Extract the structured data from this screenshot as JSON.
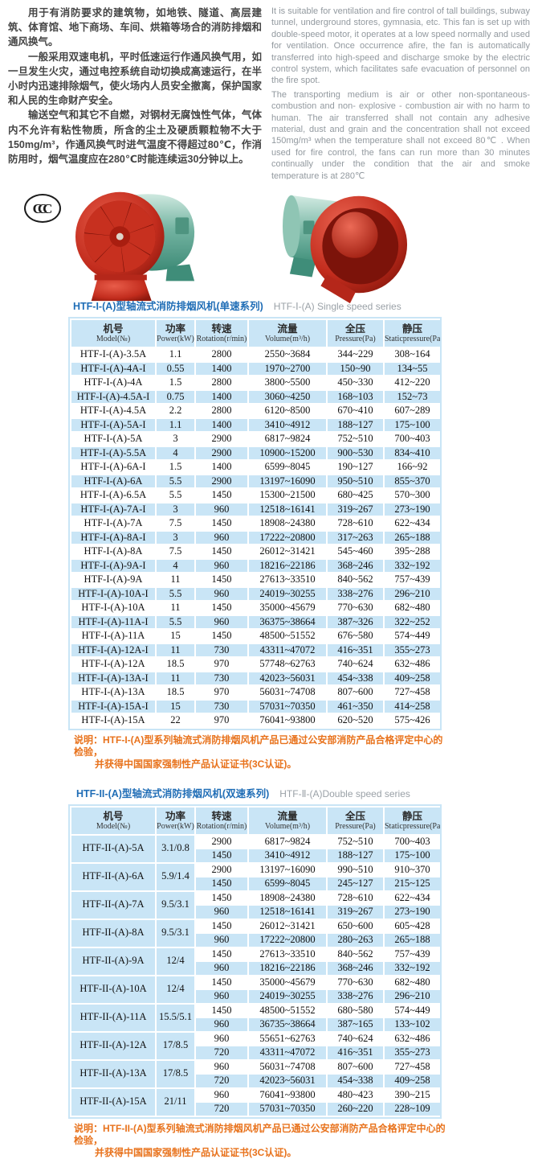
{
  "colors": {
    "accent_blue": "#1f6db6",
    "row_blue": "#c9e5f6",
    "note_orange": "#e8721c",
    "en_text_gray": "#92999f",
    "fan_red": "#c22c1d",
    "fan_green": "#57a28c"
  },
  "intro": {
    "cn_paragraphs": [
      "用于有消防要求的建筑物，如地铁、隧道、高层建筑、体育馆、地下商场、车间、烘箱等场合的消防排烟和通风换气。",
      "一般采用双速电机，平时低速运行作通风换气用，如一旦发生火灾，通过电控系统自动切换成高速运行，在半小时内迅速排除烟气，使火场内人员安全撤离，保护国家和人民的生命财产安全。",
      "输送空气和其它不自燃，对钢材无腐蚀性气体，气体内不允许有粘性物质，所含的尘土及硬质颗粒物不大于150mg/m³，作通风换气时进气温度不得超过80℃，作消防用时，烟气温度应在280℃时能连续运30分钟以上。"
    ],
    "en_paragraphs": [
      "It is suitable for ventilation and fire control of tall buildings, subway tunnel, underground stores, gymnasia, etc. This fan is set up with double-speed motor, it operates at a low speed normally and used for ventilation. Once occurrence afire, the fan is automatically transferred into high-speed and discharge smoke by the electric control system, which facilitates safe evacuation of personnel on the fire spot.",
      "The transporting medium is air or other non-spontaneous-combustion and non- explosive - combustion air with no harm to human. The air transferred shall not contain any adhesive material, dust and grain and the concentration shall not exceed 150mg/m³ when the temperature shall not exceed 80℃ . When used for fire control, the fans can run more than 30 minutes continually under the condition that the air and smoke temperature is at 280℃"
    ]
  },
  "ccc_mark_label": "CCC",
  "columns": [
    {
      "cn": "机号",
      "en": "Model(№)"
    },
    {
      "cn": "功率",
      "en": "Power(kW)"
    },
    {
      "cn": "转速",
      "en": "Rotation(r/min)"
    },
    {
      "cn": "流量",
      "en": "Volume(m³/h)"
    },
    {
      "cn": "全压",
      "en": "Pressure(Pa)"
    },
    {
      "cn": "静压",
      "en": "Staticpressure(Pa)"
    }
  ],
  "table1": {
    "title_cn": "HTF-I-(A)型轴流式消防排烟风机(单速系列)",
    "title_en": "HTF-Ⅰ-(A) Single speed series",
    "rows": [
      [
        "HTF-I-(A)-3.5A",
        "1.1",
        "2800",
        "2550~3684",
        "344~229",
        "308~164"
      ],
      [
        "HTF-I-(A)-4A-I",
        "0.55",
        "1400",
        "1970~2700",
        "150~90",
        "134~55"
      ],
      [
        "HTF-I-(A)-4A",
        "1.5",
        "2800",
        "3800~5500",
        "450~330",
        "412~220"
      ],
      [
        "HTF-I-(A)-4.5A-I",
        "0.75",
        "1400",
        "3060~4250",
        "168~103",
        "152~73"
      ],
      [
        "HTF-I-(A)-4.5A",
        "2.2",
        "2800",
        "6120~8500",
        "670~410",
        "607~289"
      ],
      [
        "HTF-I-(A)-5A-I",
        "1.1",
        "1400",
        "3410~4912",
        "188~127",
        "175~100"
      ],
      [
        "HTF-I-(A)-5A",
        "3",
        "2900",
        "6817~9824",
        "752~510",
        "700~403"
      ],
      [
        "HTF-I-(A)-5.5A",
        "4",
        "2900",
        "10900~15200",
        "900~530",
        "834~410"
      ],
      [
        "HTF-I-(A)-6A-I",
        "1.5",
        "1400",
        "6599~8045",
        "190~127",
        "166~92"
      ],
      [
        "HTF-I-(A)-6A",
        "5.5",
        "2900",
        "13197~16090",
        "950~510",
        "855~370"
      ],
      [
        "HTF-I-(A)-6.5A",
        "5.5",
        "1450",
        "15300~21500",
        "680~425",
        "570~300"
      ],
      [
        "HTF-I-(A)-7A-I",
        "3",
        "960",
        "12518~16141",
        "319~267",
        "273~190"
      ],
      [
        "HTF-I-(A)-7A",
        "7.5",
        "1450",
        "18908~24380",
        "728~610",
        "622~434"
      ],
      [
        "HTF-I-(A)-8A-I",
        "3",
        "960",
        "17222~20800",
        "317~263",
        "265~188"
      ],
      [
        "HTF-I-(A)-8A",
        "7.5",
        "1450",
        "26012~31421",
        "545~460",
        "395~288"
      ],
      [
        "HTF-I-(A)-9A-I",
        "4",
        "960",
        "18216~22186",
        "368~246",
        "332~192"
      ],
      [
        "HTF-I-(A)-9A",
        "11",
        "1450",
        "27613~33510",
        "840~562",
        "757~439"
      ],
      [
        "HTF-I-(A)-10A-I",
        "5.5",
        "960",
        "24019~30255",
        "338~276",
        "296~210"
      ],
      [
        "HTF-I-(A)-10A",
        "11",
        "1450",
        "35000~45679",
        "770~630",
        "682~480"
      ],
      [
        "HTF-I-(A)-11A-I",
        "5.5",
        "960",
        "36375~38664",
        "387~326",
        "322~252"
      ],
      [
        "HTF-I-(A)-11A",
        "15",
        "1450",
        "48500~51552",
        "676~580",
        "574~449"
      ],
      [
        "HTF-I-(A)-12A-I",
        "11",
        "730",
        "43311~47072",
        "416~351",
        "355~273"
      ],
      [
        "HTF-I-(A)-12A",
        "18.5",
        "970",
        "57748~62763",
        "740~624",
        "632~486"
      ],
      [
        "HTF-I-(A)-13A-I",
        "11",
        "730",
        "42023~56031",
        "454~338",
        "409~258"
      ],
      [
        "HTF-I-(A)-13A",
        "18.5",
        "970",
        "56031~74708",
        "807~600",
        "727~458"
      ],
      [
        "HTF-I-(A)-15A-I",
        "15",
        "730",
        "57031~70350",
        "461~350",
        "414~258"
      ],
      [
        "HTF-I-(A)-15A",
        "22",
        "970",
        "76041~93800",
        "620~520",
        "575~426"
      ]
    ]
  },
  "note1": {
    "label": "说明：",
    "line1": "HTF-I-(A)型系列轴流式消防排烟风机产品已通过公安部消防产品合格评定中心的检验，",
    "line2": "并获得中国国家强制性产品认证证书(3C认证)。"
  },
  "table2": {
    "title_cn": "HTF-II-(A)型轴流式消防排烟风机(双速系列)",
    "title_en": "HTF-Ⅱ-(A)Double speed series",
    "groups": [
      {
        "model": "HTF-II-(A)-5A",
        "power": "3.1/0.8",
        "rows": [
          [
            "2900",
            "6817~9824",
            "752~510",
            "700~403"
          ],
          [
            "1450",
            "3410~4912",
            "188~127",
            "175~100"
          ]
        ]
      },
      {
        "model": "HTF-II-(A)-6A",
        "power": "5.9/1.4",
        "rows": [
          [
            "2900",
            "13197~16090",
            "990~510",
            "910~370"
          ],
          [
            "1450",
            "6599~8045",
            "245~127",
            "215~125"
          ]
        ]
      },
      {
        "model": "HTF-II-(A)-7A",
        "power": "9.5/3.1",
        "rows": [
          [
            "1450",
            "18908~24380",
            "728~610",
            "622~434"
          ],
          [
            "960",
            "12518~16141",
            "319~267",
            "273~190"
          ]
        ]
      },
      {
        "model": "HTF-II-(A)-8A",
        "power": "9.5/3.1",
        "rows": [
          [
            "1450",
            "26012~31421",
            "650~600",
            "605~428"
          ],
          [
            "960",
            "17222~20800",
            "280~263",
            "265~188"
          ]
        ]
      },
      {
        "model": "HTF-II-(A)-9A",
        "power": "12/4",
        "rows": [
          [
            "1450",
            "27613~33510",
            "840~562",
            "757~439"
          ],
          [
            "960",
            "18216~22186",
            "368~246",
            "332~192"
          ]
        ]
      },
      {
        "model": "HTF-II-(A)-10A",
        "power": "12/4",
        "rows": [
          [
            "1450",
            "35000~45679",
            "770~630",
            "682~480"
          ],
          [
            "960",
            "24019~30255",
            "338~276",
            "296~210"
          ]
        ]
      },
      {
        "model": "HTF-II-(A)-11A",
        "power": "15.5/5.1",
        "rows": [
          [
            "1450",
            "48500~51552",
            "680~580",
            "574~449"
          ],
          [
            "960",
            "36735~38664",
            "387~165",
            "133~102"
          ]
        ]
      },
      {
        "model": "HTF-II-(A)-12A",
        "power": "17/8.5",
        "rows": [
          [
            "960",
            "55651~62763",
            "740~624",
            "632~486"
          ],
          [
            "720",
            "43311~47072",
            "416~351",
            "355~273"
          ]
        ]
      },
      {
        "model": "HTF-II-(A)-13A",
        "power": "17/8.5",
        "rows": [
          [
            "960",
            "56031~74708",
            "807~600",
            "727~458"
          ],
          [
            "720",
            "42023~56031",
            "454~338",
            "409~258"
          ]
        ]
      },
      {
        "model": "HTF-II-(A)-15A",
        "power": "21/11",
        "rows": [
          [
            "960",
            "76041~93800",
            "480~423",
            "390~215"
          ],
          [
            "720",
            "57031~70350",
            "260~220",
            "228~109"
          ]
        ]
      }
    ]
  },
  "note2": {
    "label": "说明：",
    "line1": "HTF-II-(A)型系列轴流式消防排烟风机产品已通过公安部消防产品合格评定中心的检验，",
    "line2": "并获得中国国家强制性产品认证证书(3C认证)。"
  }
}
